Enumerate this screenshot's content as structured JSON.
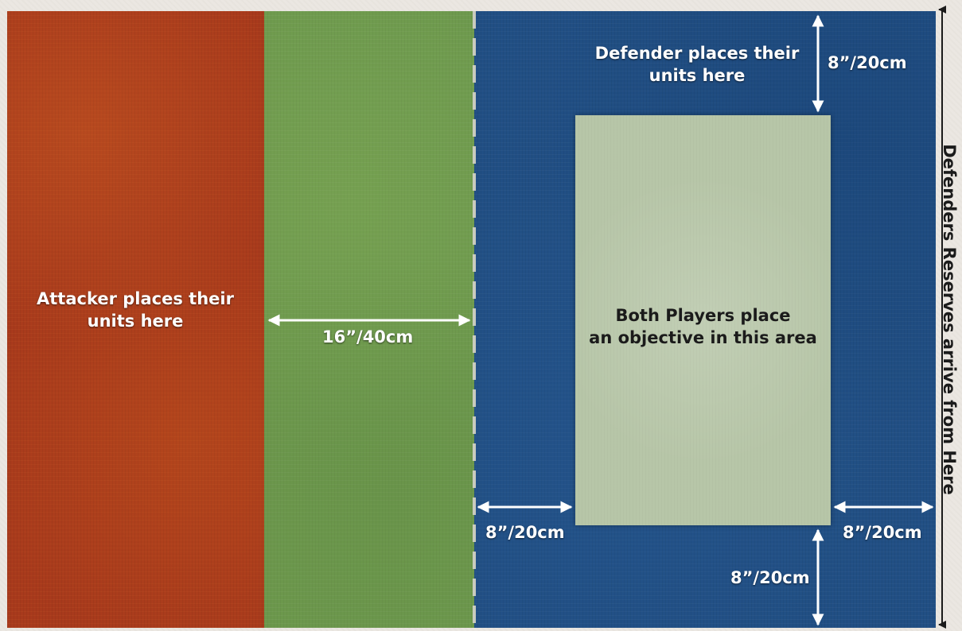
{
  "zones": {
    "attacker": {
      "label_lines": [
        "Attacker places their",
        "units here"
      ]
    },
    "defender": {
      "label_lines": [
        "Defender places their",
        "units here"
      ]
    },
    "objective": {
      "label_lines": [
        "Both Players place",
        "an objective in this area"
      ]
    }
  },
  "measurements": {
    "no_mans_land": "16”/40cm",
    "top_gap": "8”/20cm",
    "bottom_gap": "8”/20cm",
    "left_gap": "8”/20cm",
    "right_gap": "8”/20cm"
  },
  "reserves_label": "Defenders Reserves arrive from Here",
  "colors": {
    "attacker_zone": "#a83a1c",
    "neutral_zone": "#6e9a4e",
    "defender_zone": "#214f84",
    "objective_area": "#b7c6a8",
    "text": "#ffffff",
    "dark_text": "#1b1b1b"
  }
}
